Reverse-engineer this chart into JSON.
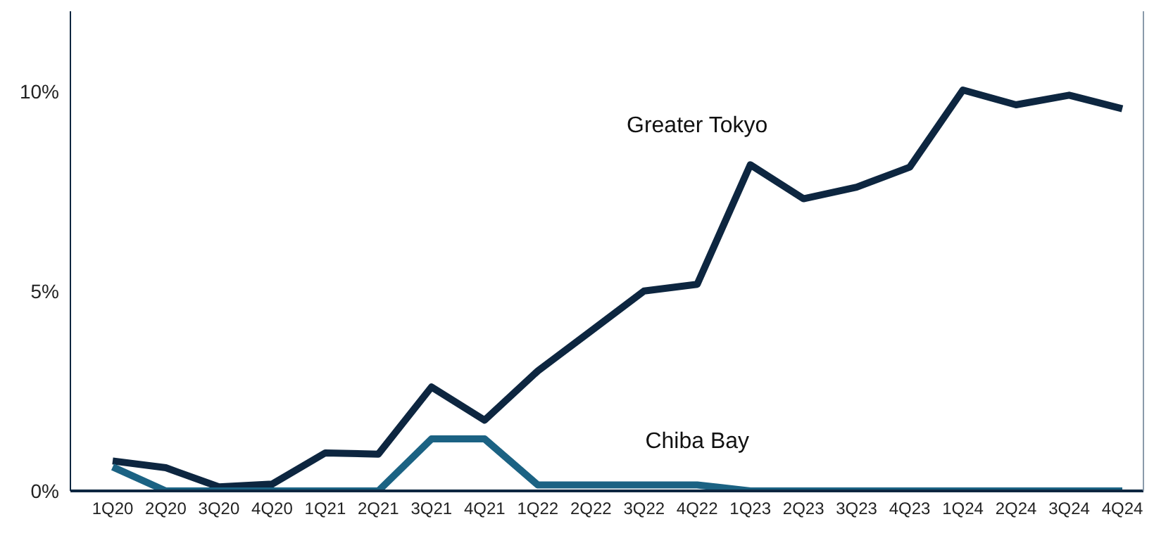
{
  "chart_data": {
    "type": "line",
    "categories": [
      "1Q20",
      "2Q20",
      "3Q20",
      "4Q20",
      "1Q21",
      "2Q21",
      "3Q21",
      "4Q21",
      "1Q22",
      "2Q22",
      "3Q22",
      "4Q22",
      "1Q23",
      "2Q23",
      "3Q23",
      "4Q23",
      "1Q24",
      "2Q24",
      "3Q24",
      "4Q24"
    ],
    "series": [
      {
        "name": "Greater Tokyo",
        "color": "#0d2640",
        "values": [
          0.75,
          0.58,
          0.1,
          0.17,
          0.95,
          0.92,
          2.6,
          1.77,
          3.0,
          4.0,
          5.0,
          5.17,
          8.16,
          7.31,
          7.6,
          8.1,
          10.03,
          9.66,
          9.9,
          9.56
        ]
      },
      {
        "name": "Chiba Bay",
        "color": "#1b6283",
        "values": [
          0.6,
          0,
          0,
          0,
          0,
          0,
          1.3,
          1.3,
          0.15,
          0.15,
          0.15,
          0.15,
          0,
          0,
          0,
          0,
          0,
          0,
          0,
          0
        ]
      }
    ],
    "ylim": [
      0,
      12
    ],
    "yticks": [
      {
        "value": 0,
        "label": "0%"
      },
      {
        "value": 5,
        "label": "5%"
      },
      {
        "value": 10,
        "label": "10%"
      }
    ],
    "grid": false,
    "legend": false,
    "marker": "none",
    "line_style": "solid"
  }
}
